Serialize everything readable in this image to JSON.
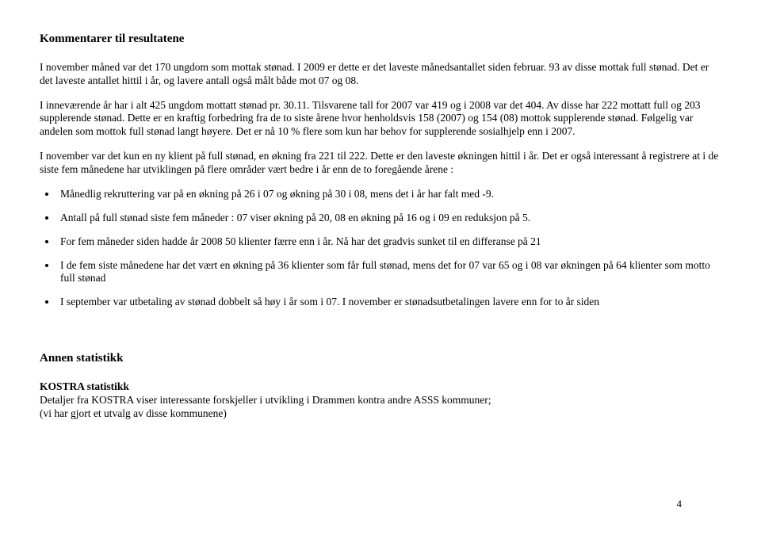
{
  "title1": "Kommentarer til resultatene",
  "para1": "I november måned var det 170 ungdom som mottak stønad. I 2009 er dette er det laveste månedsantallet siden februar. 93 av disse mottak full stønad. Det er det laveste antallet hittil i år, og lavere antall også målt både mot 07 og 08.",
  "para2": "I inneværende år har i alt 425 ungdom mottatt stønad pr. 30.11. Tilsvarene tall for 2007 var 419 og i 2008 var det 404. Av disse har 222 mottatt full og 203 supplerende stønad. Dette er en kraftig forbedring fra de to siste årene hvor henholdsvis 158 (2007) og 154 (08) mottok supplerende stønad. Følgelig var andelen som mottok full stønad langt høyere. Det er nå 10 % flere som kun har behov for supplerende sosialhjelp enn i 2007.",
  "para3": "I november var det kun en ny klient på full stønad, en økning fra  221 til 222. Dette er den laveste økningen hittil i år. Det er også interessant å registrere at i de siste fem månedene har utviklingen på flere områder vært bedre i år enn de to foregående årene :",
  "bullets": [
    "Månedlig rekruttering var på en økning på 26  i 07 og økning på 30 i 08, mens det i år har falt med -9.",
    "Antall på full stønad siste fem måneder : 07 viser økning på 20, 08 en økning på 16 og i  09 en reduksjon på 5.",
    "For fem måneder siden hadde år 2008 50 klienter færre enn i år. Nå har det gradvis sunket til en differanse på 21",
    "I de fem siste månedene har det vært en økning på 36 klienter som får full stønad, mens det for 07 var 65 og i 08 var økningen på 64 klienter som motto full stønad",
    "I september var utbetaling av stønad dobbelt så høy i år som i 07. I november er stønadsutbetalingen lavere enn for to år siden"
  ],
  "title2": "Annen statistikk",
  "subhead": "KOSTRA statistikk",
  "para4a": "Detaljer fra KOSTRA viser interessante forskjeller i utvikling i Drammen kontra andre ASSS kommuner;",
  "para4b": "(vi har gjort et utvalg av disse kommunene)",
  "pagenum": "4"
}
